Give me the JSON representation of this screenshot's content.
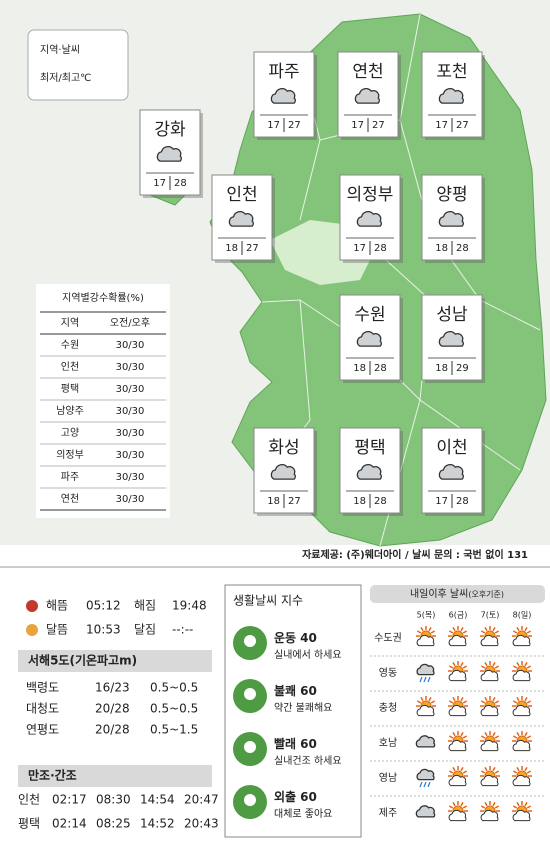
{
  "legend": {
    "line1": "지역·날씨",
    "line2": "최저/최고℃"
  },
  "cities": [
    {
      "name": "파주",
      "low": 17,
      "high": 27
    },
    {
      "name": "연천",
      "low": 17,
      "high": 27
    },
    {
      "name": "포천",
      "low": 17,
      "high": 27
    },
    {
      "name": "강화",
      "low": 17,
      "high": 28
    },
    {
      "name": "인천",
      "low": 18,
      "high": 27
    },
    {
      "name": "의정부",
      "low": 17,
      "high": 28
    },
    {
      "name": "양평",
      "low": 18,
      "high": 28
    },
    {
      "name": "수원",
      "low": 18,
      "high": 28
    },
    {
      "name": "성남",
      "low": 18,
      "high": 29
    },
    {
      "name": "화성",
      "low": 18,
      "high": 27
    },
    {
      "name": "평택",
      "low": 18,
      "high": 28
    },
    {
      "name": "이천",
      "low": 17,
      "high": 28
    }
  ],
  "rain_table": {
    "title": "지역별강수확률(%)",
    "headers": [
      "지역",
      "오전/오후"
    ],
    "rows": [
      [
        "수원",
        "30/30"
      ],
      [
        "인천",
        "30/30"
      ],
      [
        "평택",
        "30/30"
      ],
      [
        "남양주",
        "30/30"
      ],
      [
        "고양",
        "30/30"
      ],
      [
        "의정부",
        "30/30"
      ],
      [
        "파주",
        "30/30"
      ],
      [
        "연천",
        "30/30"
      ]
    ]
  },
  "source": "자료제공: (주)웨더아이 / 날씨 문의 : 국번 없이 131",
  "sun_moon": [
    [
      "해뜸",
      "05:12",
      "해짐",
      "19:48"
    ],
    [
      "달뜸",
      "10:53",
      "달짐",
      "--:--"
    ]
  ],
  "islands": {
    "title": "서해5도(기온파고m)",
    "rows": [
      [
        "백령도",
        "16/23",
        "0.5~0.5"
      ],
      [
        "대청도",
        "20/28",
        "0.5~0.5"
      ],
      [
        "연평도",
        "20/28",
        "0.5~1.5"
      ]
    ]
  },
  "tides": {
    "title": "만조·간조",
    "rows": [
      [
        "인천",
        "02:17",
        "08:30",
        "14:54",
        "20:47"
      ],
      [
        "평택",
        "02:14",
        "08:25",
        "14:52",
        "20:43"
      ]
    ]
  },
  "life": {
    "title": "생활날씨 지수",
    "items": [
      {
        "name": "운동",
        "index": 40,
        "note": "실내에서 하세요"
      },
      {
        "name": "불쾌",
        "index": 60,
        "note": "약간 불쾌해요"
      },
      {
        "name": "빨래",
        "index": 60,
        "note": "실내건조 하세요"
      },
      {
        "name": "외출",
        "index": 60,
        "note": "대체로 좋아요"
      }
    ]
  },
  "forecast": {
    "title": "내일이후 날씨",
    "subtitle": "(오후기준)",
    "days": [
      "5(목)",
      "6(금)",
      "7(토)",
      "8(일)"
    ],
    "regions": [
      "수도권",
      "영동",
      "충청",
      "호남",
      "영남",
      "제주"
    ]
  }
}
